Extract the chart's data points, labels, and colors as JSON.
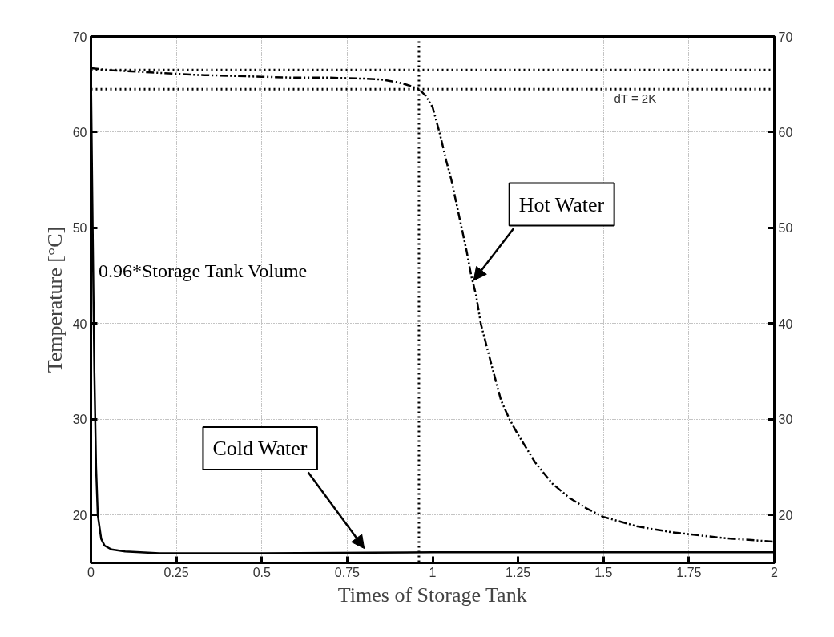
{
  "chart_data": {
    "type": "line",
    "xlabel": "Times of Storage Tank",
    "ylabel": "Temperature [°C]",
    "xlim": [
      0,
      2
    ],
    "xticks": [
      0,
      0.25,
      0.5,
      0.75,
      1,
      1.25,
      1.5,
      1.75,
      2
    ],
    "ylim": [
      15,
      70
    ],
    "yticks": [
      20,
      30,
      40,
      50,
      60,
      70
    ],
    "y2lim": [
      15,
      70
    ],
    "y2ticks": [
      20,
      30,
      40,
      50,
      60,
      70
    ],
    "grid": true,
    "series": [
      {
        "color": "#000000",
        "line_style": "dashed",
        "x": [
          0,
          0.05,
          0.1,
          0.2,
          0.3,
          0.4,
          0.5,
          0.6,
          0.7,
          0.8,
          0.85,
          0.9,
          0.93,
          0.96,
          0.98,
          1.0,
          1.02,
          1.04,
          1.055,
          1.07,
          1.085,
          1.1,
          1.113,
          1.127,
          1.141,
          1.17,
          1.2,
          1.225,
          1.25,
          1.3,
          1.35,
          1.4,
          1.45,
          1.5,
          1.6,
          1.7,
          1.75,
          1.85,
          2.0
        ],
        "values": [
          66.7,
          66.5,
          66.4,
          66.2,
          66.0,
          65.9,
          65.8,
          65.7,
          65.7,
          65.6,
          65.5,
          65.2,
          64.9,
          64.5,
          63.8,
          62.6,
          60.0,
          57.0,
          55.0,
          52.5,
          50.0,
          47.5,
          45.0,
          43.0,
          40.0,
          36.0,
          32.0,
          30.0,
          28.4,
          25.5,
          23.3,
          21.8,
          20.7,
          19.8,
          18.8,
          18.2,
          18.0,
          17.6,
          17.2
        ]
      },
      {
        "color": "#000000",
        "line_style": "solid",
        "x": [
          0,
          0.005,
          0.01,
          0.015,
          0.02,
          0.03,
          0.04,
          0.06,
          0.1,
          0.2,
          0.5,
          1.0,
          1.5,
          2.0
        ],
        "values": [
          66.0,
          50.0,
          35.0,
          25.0,
          20.0,
          17.5,
          16.8,
          16.4,
          16.2,
          16.0,
          16.0,
          16.1,
          16.1,
          16.1
        ]
      }
    ],
    "ref_lines": [
      {
        "axis": "y",
        "value": 66.5,
        "label": null,
        "line_style": "dotted",
        "color": "#000000"
      },
      {
        "axis": "y",
        "value": 64.5,
        "label": null,
        "line_style": "dotted",
        "color": "#000000"
      },
      {
        "axis": "x",
        "value": 0.96,
        "label": "0.96*Storage Tank Volume",
        "line_style": "dotted",
        "color": "#000000"
      }
    ],
    "annotations": [
      {
        "text": "Hot Water",
        "x": 1.12,
        "y": 44.5
      },
      {
        "text": "Cold Water",
        "x": 0.8,
        "y": 16.5
      },
      "dT = 2K"
    ]
  }
}
